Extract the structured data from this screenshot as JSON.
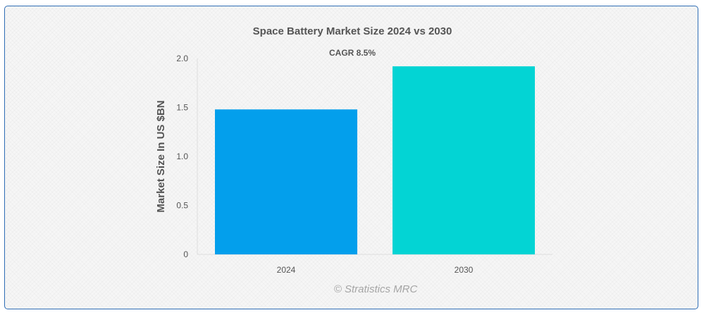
{
  "chart_data": {
    "type": "bar",
    "title": "Space Battery Market Size 2024 vs 2030",
    "subtitle": "CAGR 8.5%",
    "categories": [
      "2024",
      "2030"
    ],
    "values": [
      1.48,
      1.92
    ],
    "colors": [
      "#039fec",
      "#03d4d4"
    ],
    "ylabel": "Market Size In US $BN",
    "ylim": [
      0,
      2.0
    ],
    "yticks": [
      0,
      0.5,
      1.0,
      1.5,
      2.0
    ],
    "ytick_labels": [
      "0",
      "0.5",
      "1.0",
      "1.5",
      "2.0"
    ],
    "grid": false,
    "legend": "none"
  },
  "credit": "© Stratistics MRC"
}
